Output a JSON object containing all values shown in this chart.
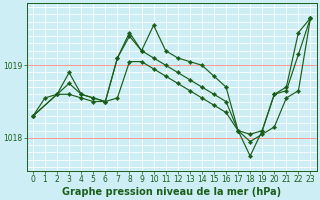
{
  "background_color": "#cdeef5",
  "plot_bg_color": "#cdeef5",
  "line_color": "#1a5e1a",
  "grid_color_white": "#ffffff",
  "grid_color_pink": "#ff9999",
  "xlabel": "Graphe pression niveau de la mer (hPa)",
  "xlim": [
    -0.5,
    23.5
  ],
  "ylim": [
    1017.55,
    1019.85
  ],
  "yticks": [
    1018,
    1019
  ],
  "xticks": [
    0,
    1,
    2,
    3,
    4,
    5,
    6,
    7,
    8,
    9,
    10,
    11,
    12,
    13,
    14,
    15,
    16,
    17,
    18,
    19,
    20,
    21,
    22,
    23
  ],
  "series": [
    {
      "x": [
        0,
        1,
        2,
        3,
        4,
        5,
        6,
        7,
        8,
        9,
        10,
        11,
        12,
        13,
        14,
        15,
        16,
        17,
        18,
        19,
        20,
        21,
        22,
        23
      ],
      "y": [
        1018.3,
        1018.55,
        1018.6,
        1018.75,
        1018.6,
        1018.55,
        1018.5,
        1019.1,
        1019.45,
        1019.2,
        1019.55,
        1019.2,
        1019.1,
        1019.05,
        1019.0,
        1018.85,
        1018.7,
        1018.1,
        1017.75,
        1018.1,
        1018.6,
        1018.7,
        1019.45,
        1019.65
      ]
    },
    {
      "x": [
        0,
        2,
        3,
        4,
        5,
        6,
        7,
        8,
        9,
        10,
        11,
        12,
        13,
        14,
        15,
        16,
        17,
        18,
        19,
        20,
        21,
        22,
        23
      ],
      "y": [
        1018.3,
        1018.6,
        1018.9,
        1018.6,
        1018.55,
        1018.5,
        1019.1,
        1019.4,
        1019.2,
        1019.1,
        1019.0,
        1018.9,
        1018.8,
        1018.7,
        1018.6,
        1018.5,
        1018.1,
        1018.05,
        1018.1,
        1018.6,
        1018.65,
        1019.15,
        1019.65
      ]
    },
    {
      "x": [
        0,
        2,
        3,
        4,
        5,
        6,
        7,
        8,
        9,
        10,
        11,
        12,
        13,
        14,
        15,
        16,
        17,
        18,
        19,
        20,
        21,
        22,
        23
      ],
      "y": [
        1018.3,
        1018.6,
        1018.6,
        1018.55,
        1018.5,
        1018.5,
        1018.55,
        1019.05,
        1019.05,
        1018.95,
        1018.85,
        1018.75,
        1018.65,
        1018.55,
        1018.45,
        1018.35,
        1018.1,
        1017.95,
        1018.05,
        1018.15,
        1018.55,
        1018.65,
        1019.65
      ]
    }
  ],
  "tick_fontsize": 5.5,
  "xlabel_fontsize": 7.0
}
